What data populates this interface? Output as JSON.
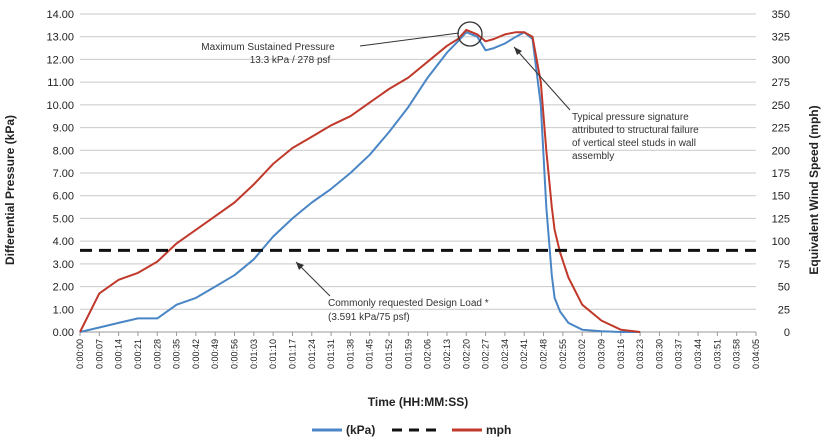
{
  "chart_data": {
    "type": "line",
    "xlabel": "Time (HH:MM:SS)",
    "ylabel_left": "Differential Pressure (kPa)",
    "ylabel_right": "Equivalent Wind Speed (mph)",
    "ylim_left": [
      0,
      14
    ],
    "ylim_right": [
      0,
      350
    ],
    "y_ticks_left": [
      "0.00",
      "1.00",
      "2.00",
      "3.00",
      "4.00",
      "5.00",
      "6.00",
      "7.00",
      "8.00",
      "9.00",
      "10.00",
      "11.00",
      "12.00",
      "13.00",
      "14.00"
    ],
    "y_ticks_right": [
      "0",
      "25",
      "50",
      "75",
      "100",
      "125",
      "150",
      "175",
      "200",
      "225",
      "250",
      "275",
      "300",
      "325",
      "350"
    ],
    "x_ticks": [
      "0:00:00",
      "0:00:07",
      "0:00:14",
      "0:00:21",
      "0:00:28",
      "0:00:35",
      "0:00:42",
      "0:00:49",
      "0:00:56",
      "0:01:03",
      "0:01:10",
      "0:01:17",
      "0:01:24",
      "0:01:31",
      "0:01:38",
      "0:01:45",
      "0:01:52",
      "0:01:59",
      "0:02:06",
      "0:02:13",
      "0:02:20",
      "0:02:27",
      "0:02:34",
      "0:02:41",
      "0:02:48",
      "0:02:55",
      "0:03:02",
      "0:03:09",
      "0:03:16",
      "0:03:23",
      "0:03:30",
      "0:03:37",
      "0:03:44",
      "0:03:51",
      "0:03:58",
      "0:04:05"
    ],
    "grid": true,
    "legend_position": "bottom",
    "series": [
      {
        "name": "(kPa)",
        "color": "#4a86c5",
        "axis": "left",
        "x": [
          0,
          7,
          14,
          21,
          28,
          35,
          42,
          49,
          56,
          63,
          70,
          77,
          84,
          91,
          98,
          105,
          112,
          119,
          126,
          133,
          137,
          140,
          144,
          147,
          150,
          154,
          158,
          161,
          164,
          167,
          169,
          171,
          172,
          174,
          177,
          182,
          189,
          196,
          203
        ],
        "y": [
          0,
          0.2,
          0.4,
          0.6,
          0.6,
          1.2,
          1.5,
          2.0,
          2.5,
          3.2,
          4.2,
          5.0,
          5.7,
          6.3,
          7.0,
          7.8,
          8.8,
          9.9,
          11.2,
          12.3,
          12.8,
          13.2,
          13.0,
          12.4,
          12.5,
          12.7,
          13.0,
          13.2,
          12.9,
          10.0,
          5.5,
          2.5,
          1.5,
          0.9,
          0.4,
          0.1,
          0.03,
          0,
          0
        ]
      },
      {
        "name": "mph",
        "color": "#c0392b",
        "axis": "left",
        "x": [
          0,
          7,
          14,
          21,
          28,
          35,
          42,
          49,
          56,
          63,
          70,
          77,
          84,
          91,
          98,
          105,
          112,
          119,
          126,
          133,
          137,
          140,
          144,
          147,
          150,
          154,
          158,
          161,
          164,
          167,
          169,
          171,
          172,
          174,
          177,
          182,
          189,
          196,
          203
        ],
        "y": [
          0,
          1.7,
          2.3,
          2.6,
          3.1,
          3.9,
          4.5,
          5.1,
          5.7,
          6.5,
          7.4,
          8.1,
          8.6,
          9.1,
          9.5,
          10.1,
          10.7,
          11.2,
          11.9,
          12.6,
          12.9,
          13.3,
          13.1,
          12.8,
          12.9,
          13.1,
          13.2,
          13.2,
          13.0,
          11.0,
          8.0,
          5.5,
          4.5,
          3.5,
          2.4,
          1.2,
          0.5,
          0.1,
          0
        ]
      },
      {
        "name": "",
        "color": "#111111",
        "axis": "left",
        "dashed": true,
        "y_const": 3.591
      }
    ],
    "annotations": [
      {
        "text_line1": "Maximum Sustained Pressure",
        "text_line2": "13.3 kPa / 278 psf"
      },
      {
        "text_line1": "Typical pressure signature",
        "text_line2": "attributed to structural failure",
        "text_line3": "of vertical steel studs in wall",
        "text_line4": "assembly"
      },
      {
        "text_line1": "Commonly requested Design Load *",
        "text_line2": "(3.591 kPa/75 psf)"
      }
    ]
  },
  "legend": {
    "kpa_label": "(kPa)",
    "mph_label": "mph"
  }
}
